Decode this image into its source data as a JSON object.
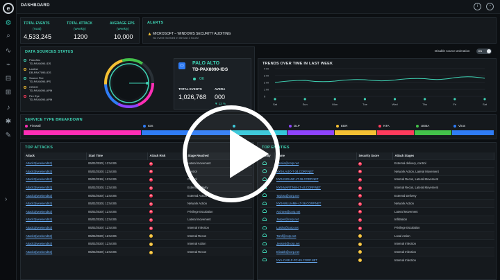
{
  "header": {
    "title": "DASHBOARD"
  },
  "summary": {
    "total_events": {
      "label": "TOTAL EVENTS",
      "sub": "(Total)",
      "value": "4,533,245"
    },
    "total_attack": {
      "label": "TOTAL ATTACK",
      "sub": "(Weekly)",
      "value": "1200"
    },
    "average_eps": {
      "label": "AVERAGE EPS",
      "sub": "(Weekly)",
      "value": "10,000"
    }
  },
  "alerts": {
    "title": "ALERTS",
    "item": "MICROSOFT – WINDOWS SECURITY AUDITING",
    "item_sub": "No event received in the last 3 hours!"
  },
  "data_sources": {
    "title": "DATA SOURCES STATUS",
    "animation_label": "Disable source animation",
    "toggle_label": "ON",
    "items": [
      {
        "name": "Palo Alto",
        "model": "TD-PAX8090-IDS",
        "color": "#3fd4b5"
      },
      {
        "name": "Lanline",
        "model": "DB-PAX7095-IDS",
        "color": "#f5c033"
      },
      {
        "name": "Source Fire",
        "model": "TD-PAX8090-IPS",
        "color": "#3fd4b5"
      },
      {
        "name": "CISCO",
        "model": "TD-PAX8090-APM",
        "color": "#f5c033"
      },
      {
        "name": "Fire Eye",
        "model": "TD-PAX8090-APM",
        "color": "#ff3b5c"
      }
    ],
    "detail": {
      "name": "PALO ALTO",
      "model": "TD-PAX8090-IDS",
      "status": "OK",
      "total_events_label": "TOTAL EVENTS",
      "total_events": "1,026,768",
      "avg_label": "AVERA",
      "avg_value": "000",
      "change": "▼ 12 %"
    }
  },
  "trends": {
    "title": "TRENDS OVER TIME IN LAST WEEK",
    "y_ticks": [
      "4 M",
      "3 M",
      "2 M",
      "1 M",
      "0"
    ],
    "x_ticks": [
      "Sat",
      "Sun",
      "Mon",
      "Tue",
      "Wed",
      "Thu",
      "Fri",
      "Sat"
    ],
    "line_color": "#3fd4b5"
  },
  "chart_data": {
    "type": "line",
    "title": "TRENDS OVER TIME IN LAST WEEK",
    "xlabel": "",
    "ylabel": "",
    "categories": [
      "Sat",
      "Sun",
      "Mon",
      "Tue",
      "Wed",
      "Thu",
      "Fri",
      "Sat"
    ],
    "x": [
      "Sat",
      "Sun",
      "Mon",
      "Tue",
      "Wed",
      "Thu",
      "Fri",
      "Sat"
    ],
    "ylim": [
      0,
      4000000
    ],
    "series": [
      {
        "values": [
          2000000,
          2300000,
          2200000,
          2400000,
          2350000,
          2550000,
          2700000,
          2600000
        ]
      }
    ],
    "grid": true
  },
  "service_type": {
    "title": "SERVICE TYPE BREAKDOWN",
    "items": [
      {
        "label": "Firewall",
        "color": "#ff2eb5",
        "share": 0.25
      },
      {
        "label": "IDS",
        "color": "#2f7cf6",
        "share": 0.19
      },
      {
        "label": "",
        "color": "#34c7d9",
        "share": 0.12
      },
      {
        "label": "DLP",
        "color": "#8e44ff",
        "share": 0.1
      },
      {
        "label": "EDR",
        "color": "#f5c033",
        "share": 0.09
      },
      {
        "label": "NTA",
        "color": "#ff3b5c",
        "share": 0.08
      },
      {
        "label": "UEBA",
        "color": "#43c24a",
        "share": 0.08
      },
      {
        "label": "Virus",
        "color": "#2f7cf6",
        "share": 0.09
      }
    ]
  },
  "top_attacks": {
    "title": "TOP ATTACKS",
    "columns": [
      "Attack",
      "Start Time",
      "Attack Risk",
      "Stage Reached"
    ],
    "rows": [
      {
        "attack": "Attack3(weekend63)",
        "time": "06/02/2020 | 12:54:06",
        "risk": "H",
        "risk_color": "#ff3b5c",
        "stage": "Lateral movement"
      },
      {
        "attack": "Attack3(weekend63)",
        "time": "06/02/2020 | 12:54:06",
        "risk": "H",
        "risk_color": "#ff3b5c",
        "stage": "Control"
      },
      {
        "attack": "Attack3(weekend63)",
        "time": "06/02/2019 | 12:54:06",
        "risk": "H",
        "risk_color": "#ff3b5c",
        "stage": "Control"
      },
      {
        "attack": "Attack3(weekend63)",
        "time": "06/02/2020 | 12:54:06",
        "risk": "H",
        "risk_color": "#ff3b5c",
        "stage": "External Activity"
      },
      {
        "attack": "Attack3(weekend63)",
        "time": "06/02/2020 | 12:54:06",
        "risk": "H",
        "risk_color": "#ff3b5c",
        "stage": "External Action"
      },
      {
        "attack": "Attack3(weekend63)",
        "time": "06/02/2020 | 12:54:06",
        "risk": "H",
        "risk_color": "#ff3b5c",
        "stage": "Network Action"
      },
      {
        "attack": "Attack3(weekend63)",
        "time": "06/02/2020 | 12:54:06",
        "risk": "H",
        "risk_color": "#ff3b5c",
        "stage": "Privilege Escalation"
      },
      {
        "attack": "Attack3(weekend63)",
        "time": "06/02/2020 | 12:54:06",
        "risk": "H",
        "risk_color": "#ff3b5c",
        "stage": "Lateral movement"
      },
      {
        "attack": "Attack3(weekend63)",
        "time": "06/02/2020 | 12:54:06",
        "risk": "H",
        "risk_color": "#ff3b5c",
        "stage": "Internal Infection"
      },
      {
        "attack": "Attack3(weekend63)",
        "time": "06/02/2020 | 12:54:06",
        "risk": "L",
        "risk_color": "#f5c033",
        "stage": "Internal Recon"
      },
      {
        "attack": "Attack3(weekend63)",
        "time": "06/02/2020 | 12:54:06",
        "risk": "L",
        "risk_color": "#f5c033",
        "stage": "Internal Action"
      },
      {
        "attack": "Attack3(weekend63)",
        "time": "06/02/2020 | 12:54:06",
        "risk": "L",
        "risk_color": "#f5c033",
        "stage": "Internal Recon"
      }
    ]
  },
  "top_entities": {
    "title": "TOP ENTITIES",
    "columns": [
      "Entity",
      "Name",
      "Security Score",
      "Attack Stages"
    ],
    "rows": [
      {
        "name": "Amalia@corp.net",
        "score": "H",
        "score_color": "#ff3b5c",
        "stage": "External delivery, control"
      },
      {
        "name": "NYB-LAIJO-T-34.CORP.NET",
        "score": "H",
        "score_color": "#ff3b5c",
        "stage": "Network Action, Lateral Movement"
      },
      {
        "name": "NYB-ISIDANF-LT-36.CORP.NET",
        "score": "H",
        "score_color": "#ff3b5c",
        "stage": "Internal Recon, Lateral Movement"
      },
      {
        "name": "NYB-MARTINW-LT-44.CORP.NET",
        "score": "H",
        "score_color": "#ff3b5c",
        "stage": "Internal Recon, Lateral Movement"
      },
      {
        "name": "Taylora@corp.net",
        "score": "H",
        "score_color": "#ff3b5c",
        "stage": "External Delivery"
      },
      {
        "name": "NYB-WILLIAMH-LT-36.CORP.NET",
        "score": "H",
        "score_color": "#ff3b5c",
        "stage": "Network Action"
      },
      {
        "name": "Archiew@corp.net",
        "score": "H",
        "score_color": "#ff3b5c",
        "stage": "Lateral Movement"
      },
      {
        "name": "Jasper@corp.net",
        "score": "H",
        "score_color": "#ff3b5c",
        "stage": "Infiltration"
      },
      {
        "name": "Luisho@corp.net",
        "score": "H",
        "score_color": "#ff3b5c",
        "stage": "Privilege Escalation"
      },
      {
        "name": "Tomf@corp.net",
        "score": "L",
        "score_color": "#f5c033",
        "stage": "Local Action"
      },
      {
        "name": "Jessieb@corp.net",
        "score": "L",
        "score_color": "#f5c033",
        "stage": "Internal Infection"
      },
      {
        "name": "Elizabh@corp.net",
        "score": "L",
        "score_color": "#f5c033",
        "stage": "Internal Infection"
      },
      {
        "name": "NYA-CARLF-PC-89.CORP.NET",
        "score": "L",
        "score_color": "#f5c033",
        "stage": "Internal Infection"
      }
    ]
  }
}
